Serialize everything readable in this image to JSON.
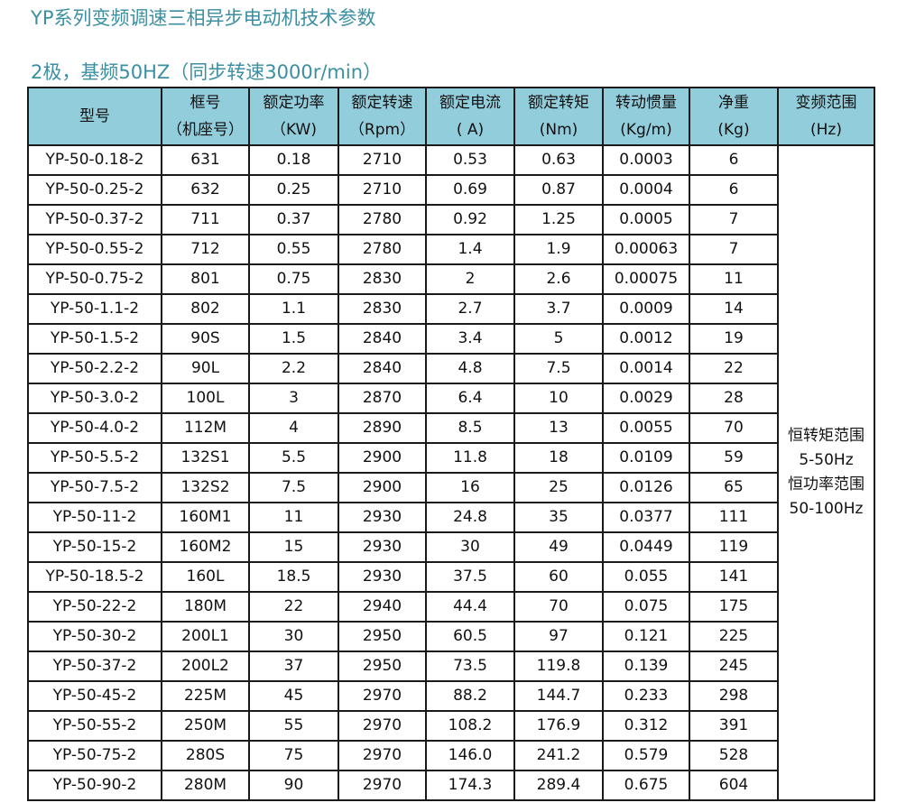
{
  "title": "YP系列变频调速三相异步电动机技术参数",
  "subtitle": "2极，基频50HZ（同步转速3000r/min）",
  "colors": {
    "header_bg": "#92cddc",
    "title": "#3a8fa3"
  },
  "columns": [
    {
      "line1": "型号",
      "line2": ""
    },
    {
      "line1": "框号",
      "line2": "（机座号）"
    },
    {
      "line1": "额定功率",
      "line2": "（KW)"
    },
    {
      "line1": "额定转速",
      "line2": "（Rpm）"
    },
    {
      "line1": "额定电流",
      "line2": "( A)"
    },
    {
      "line1": "额定转矩",
      "line2": "(Nm)"
    },
    {
      "line1": "转动惯量",
      "line2": "(Kg/m)"
    },
    {
      "line1": "净重",
      "line2": "(Kg)"
    },
    {
      "line1": "变频范围",
      "line2": "(Hz)"
    }
  ],
  "range_text": [
    "恒转矩范围",
    "5-50Hz",
    "恒功率范围",
    "50-100Hz"
  ],
  "rows": [
    [
      "YP-50-0.18-2",
      "631",
      "0.18",
      "2710",
      "0.53",
      "0.63",
      "0.0003",
      "6"
    ],
    [
      "YP-50-0.25-2",
      "632",
      "0.25",
      "2710",
      "0.69",
      "0.87",
      "0.0004",
      "6"
    ],
    [
      "YP-50-0.37-2",
      "711",
      "0.37",
      "2780",
      "0.92",
      "1.25",
      "0.0005",
      "7"
    ],
    [
      "YP-50-0.55-2",
      "712",
      "0.55",
      "2780",
      "1.4",
      "1.9",
      "0.00063",
      "7"
    ],
    [
      "YP-50-0.75-2",
      "801",
      "0.75",
      "2830",
      "2",
      "2.6",
      "0.00075",
      "11"
    ],
    [
      "YP-50-1.1-2",
      "802",
      "1.1",
      "2830",
      "2.7",
      "3.7",
      "0.0009",
      "14"
    ],
    [
      "YP-50-1.5-2",
      "90S",
      "1.5",
      "2840",
      "3.4",
      "5",
      "0.0012",
      "19"
    ],
    [
      "YP-50-2.2-2",
      "90L",
      "2.2",
      "2840",
      "4.8",
      "7.5",
      "0.0014",
      "22"
    ],
    [
      "YP-50-3.0-2",
      "100L",
      "3",
      "2870",
      "6.4",
      "10",
      "0.0029",
      "28"
    ],
    [
      "YP-50-4.0-2",
      "112M",
      "4",
      "2890",
      "8.5",
      "13",
      "0.0055",
      "70"
    ],
    [
      "YP-50-5.5-2",
      "132S1",
      "5.5",
      "2900",
      "11.8",
      "18",
      "0.0109",
      "59"
    ],
    [
      "YP-50-7.5-2",
      "132S2",
      "7.5",
      "2900",
      "16",
      "25",
      "0.0126",
      "65"
    ],
    [
      "YP-50-11-2",
      "160M1",
      "11",
      "2930",
      "24.8",
      "35",
      "0.0377",
      "111"
    ],
    [
      "YP-50-15-2",
      "160M2",
      "15",
      "2930",
      "30",
      "49",
      "0.0449",
      "119"
    ],
    [
      "YP-50-18.5-2",
      "160L",
      "18.5",
      "2930",
      "37.5",
      "60",
      "0.055",
      "141"
    ],
    [
      "YP-50-22-2",
      "180M",
      "22",
      "2940",
      "44.4",
      "70",
      "0.075",
      "175"
    ],
    [
      "YP-50-30-2",
      "200L1",
      "30",
      "2950",
      "60.5",
      "97",
      "0.121",
      "225"
    ],
    [
      "YP-50-37-2",
      "200L2",
      "37",
      "2950",
      "73.5",
      "119.8",
      "0.139",
      "245"
    ],
    [
      "YP-50-45-2",
      "225M",
      "45",
      "2970",
      "88.2",
      "144.7",
      "0.233",
      "298"
    ],
    [
      "YP-50-55-2",
      "250M",
      "55",
      "2970",
      "108.2",
      "176.9",
      "0.312",
      "391"
    ],
    [
      "YP-50-75-2",
      "280S",
      "75",
      "2970",
      "146.0",
      "241.2",
      "0.579",
      "528"
    ],
    [
      "YP-50-90-2",
      "280M",
      "90",
      "2970",
      "174.3",
      "289.4",
      "0.675",
      "604"
    ]
  ]
}
